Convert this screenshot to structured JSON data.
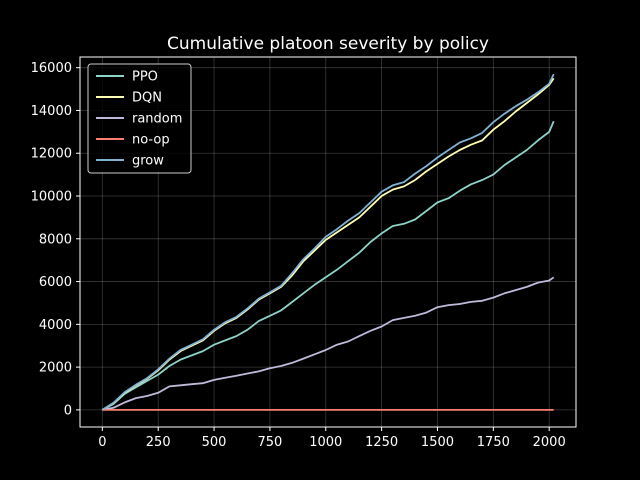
{
  "chart_data": {
    "type": "line",
    "title": "Cumulative platoon severity by policy",
    "xlabel": "",
    "ylabel": "",
    "xlim": [
      -100,
      2120
    ],
    "ylim": [
      -800,
      16500
    ],
    "xticks": [
      0,
      250,
      500,
      750,
      1000,
      1250,
      1500,
      1750,
      2000
    ],
    "yticks": [
      0,
      2000,
      4000,
      6000,
      8000,
      10000,
      12000,
      14000,
      16000
    ],
    "grid": true,
    "legend_position": "upper-left",
    "series": [
      {
        "name": "PPO",
        "color": "#8dd3c7",
        "x": [
          0,
          50,
          100,
          150,
          200,
          250,
          300,
          350,
          400,
          450,
          500,
          550,
          600,
          650,
          700,
          750,
          800,
          850,
          900,
          950,
          1000,
          1050,
          1100,
          1150,
          1200,
          1250,
          1300,
          1350,
          1400,
          1450,
          1500,
          1550,
          1600,
          1650,
          1700,
          1750,
          1800,
          1850,
          1900,
          1950,
          2000,
          2020
        ],
        "y": [
          0,
          280,
          750,
          1050,
          1350,
          1650,
          2050,
          2350,
          2550,
          2750,
          3050,
          3250,
          3450,
          3750,
          4150,
          4400,
          4650,
          5050,
          5450,
          5850,
          6200,
          6550,
          6950,
          7350,
          7850,
          8250,
          8600,
          8700,
          8900,
          9300,
          9700,
          9900,
          10250,
          10550,
          10750,
          11000,
          11450,
          11800,
          12150,
          12600,
          13000,
          13500
        ]
      },
      {
        "name": "DQN",
        "color": "#ffffb3",
        "x": [
          0,
          50,
          100,
          150,
          200,
          250,
          300,
          350,
          400,
          450,
          500,
          550,
          600,
          650,
          700,
          750,
          800,
          850,
          900,
          950,
          1000,
          1050,
          1100,
          1150,
          1200,
          1250,
          1300,
          1350,
          1400,
          1450,
          1500,
          1550,
          1600,
          1650,
          1700,
          1750,
          1800,
          1850,
          1900,
          1950,
          2000,
          2020
        ],
        "y": [
          0,
          320,
          800,
          1150,
          1450,
          1850,
          2350,
          2750,
          3000,
          3250,
          3700,
          4050,
          4300,
          4700,
          5150,
          5450,
          5750,
          6300,
          6950,
          7450,
          7950,
          8300,
          8650,
          9000,
          9500,
          10000,
          10300,
          10450,
          10750,
          11150,
          11500,
          11850,
          12150,
          12400,
          12600,
          13100,
          13500,
          13950,
          14350,
          14750,
          15200,
          15500
        ]
      },
      {
        "name": "random",
        "color": "#bebada",
        "x": [
          0,
          50,
          100,
          150,
          200,
          250,
          300,
          350,
          400,
          450,
          500,
          550,
          600,
          650,
          700,
          750,
          800,
          850,
          900,
          950,
          1000,
          1050,
          1100,
          1150,
          1200,
          1250,
          1300,
          1350,
          1400,
          1450,
          1500,
          1550,
          1600,
          1650,
          1700,
          1750,
          1800,
          1850,
          1900,
          1950,
          2000,
          2020
        ],
        "y": [
          0,
          100,
          350,
          550,
          650,
          800,
          1100,
          1150,
          1200,
          1250,
          1400,
          1500,
          1600,
          1700,
          1800,
          1950,
          2050,
          2200,
          2400,
          2600,
          2800,
          3050,
          3200,
          3450,
          3700,
          3900,
          4200,
          4300,
          4400,
          4550,
          4800,
          4900,
          4950,
          5050,
          5100,
          5250,
          5450,
          5600,
          5750,
          5950,
          6050,
          6200
        ]
      },
      {
        "name": "no-op",
        "color": "#fb8072",
        "x": [
          0,
          2020
        ],
        "y": [
          0,
          0
        ]
      },
      {
        "name": "grow",
        "color": "#80b1d3",
        "x": [
          0,
          50,
          100,
          150,
          200,
          250,
          300,
          350,
          400,
          450,
          500,
          550,
          600,
          650,
          700,
          750,
          800,
          850,
          900,
          950,
          1000,
          1050,
          1100,
          1150,
          1200,
          1250,
          1300,
          1350,
          1400,
          1450,
          1500,
          1550,
          1600,
          1650,
          1700,
          1750,
          1800,
          1850,
          1900,
          1950,
          2000,
          2020
        ],
        "y": [
          0,
          330,
          830,
          1180,
          1480,
          1900,
          2400,
          2800,
          3050,
          3300,
          3750,
          4100,
          4350,
          4750,
          5200,
          5500,
          5800,
          6400,
          7050,
          7550,
          8100,
          8450,
          8850,
          9200,
          9700,
          10200,
          10500,
          10650,
          11050,
          11400,
          11800,
          12150,
          12500,
          12700,
          12950,
          13450,
          13850,
          14200,
          14500,
          14850,
          15250,
          15700
        ]
      }
    ]
  }
}
